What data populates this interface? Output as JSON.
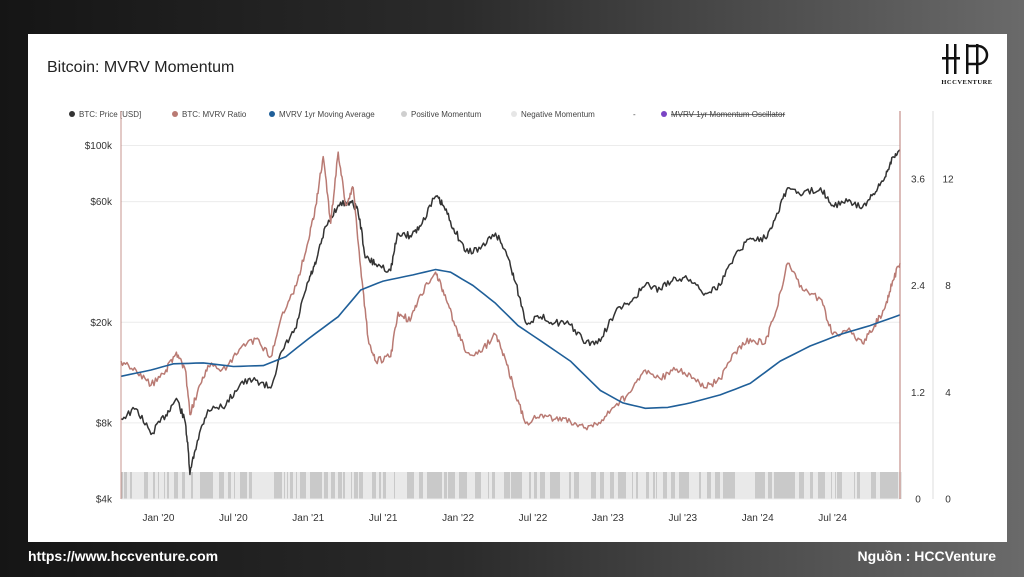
{
  "page": {
    "footer_left": "https://www.hccventure.com",
    "footer_right": "Nguồn : HCCVenture",
    "logo_text": "HCCVENTURE"
  },
  "chart_data": {
    "type": "line",
    "title": "Bitcoin: MVRV Momentum",
    "legend": [
      {
        "name": "BTC: Price [USD]",
        "color": "#333333",
        "struck": false
      },
      {
        "name": "BTC: MVRV Ratio",
        "color": "#b97a73",
        "struck": false
      },
      {
        "name": "MVRV 1yr Moving Average",
        "color": "#1f5f99",
        "struck": false
      },
      {
        "name": "Positive Momentum",
        "color": "#cfcfcf",
        "struck": false
      },
      {
        "name": "Negative Momentum",
        "color": "#e6e6e6",
        "struck": false
      },
      {
        "name": "-",
        "color": "",
        "struck": false
      },
      {
        "name": "MVRV 1yr Momentum Oscillator",
        "color": "#7a44c4",
        "struck": true
      }
    ],
    "x_ticks": [
      "Jan '20",
      "Jul '20",
      "Jan '21",
      "Jul '21",
      "Jan '22",
      "Jul '22",
      "Jan '23",
      "Jul '23",
      "Jan '24",
      "Jul '24"
    ],
    "y_left_ticks": [
      "$100k",
      "$60k",
      "$20k",
      "$8k",
      "$4k"
    ],
    "y_left_values": [
      100000,
      60000,
      20000,
      8000,
      4000
    ],
    "y_left_scale": "log",
    "y_right1_ticks": [
      "3.6",
      "2.4",
      "1.2",
      "0"
    ],
    "y_right1_values": [
      3.6,
      2.4,
      1.2,
      0
    ],
    "y_right2_ticks": [
      "12",
      "8",
      "4",
      "0"
    ],
    "y_right2_values": [
      12,
      8,
      4,
      0
    ],
    "x_range": [
      2019.75,
      2024.95
    ],
    "series": [
      {
        "name": "BTC: Price [USD]",
        "axis": "left",
        "color": "#333333",
        "points": [
          [
            2019.75,
            8300
          ],
          [
            2019.85,
            9100
          ],
          [
            2019.95,
            7200
          ],
          [
            2020.05,
            8600
          ],
          [
            2020.12,
            10000
          ],
          [
            2020.18,
            8000
          ],
          [
            2020.21,
            5000
          ],
          [
            2020.26,
            6800
          ],
          [
            2020.33,
            9000
          ],
          [
            2020.45,
            9400
          ],
          [
            2020.55,
            11500
          ],
          [
            2020.65,
            11800
          ],
          [
            2020.75,
            11000
          ],
          [
            2020.83,
            15500
          ],
          [
            2020.92,
            19000
          ],
          [
            2021.0,
            29000
          ],
          [
            2021.05,
            34000
          ],
          [
            2021.12,
            48000
          ],
          [
            2021.2,
            58000
          ],
          [
            2021.28,
            60000
          ],
          [
            2021.33,
            56000
          ],
          [
            2021.38,
            36000
          ],
          [
            2021.45,
            34000
          ],
          [
            2021.55,
            32000
          ],
          [
            2021.6,
            45000
          ],
          [
            2021.68,
            44000
          ],
          [
            2021.75,
            48000
          ],
          [
            2021.85,
            63000
          ],
          [
            2021.9,
            58000
          ],
          [
            2021.97,
            47000
          ],
          [
            2022.05,
            38000
          ],
          [
            2022.15,
            39000
          ],
          [
            2022.25,
            45000
          ],
          [
            2022.32,
            38000
          ],
          [
            2022.38,
            29000
          ],
          [
            2022.45,
            20000
          ],
          [
            2022.55,
            21000
          ],
          [
            2022.65,
            20000
          ],
          [
            2022.75,
            19500
          ],
          [
            2022.85,
            16500
          ],
          [
            2022.95,
            16800
          ],
          [
            2023.05,
            22000
          ],
          [
            2023.15,
            24000
          ],
          [
            2023.25,
            28000
          ],
          [
            2023.35,
            27000
          ],
          [
            2023.45,
            30000
          ],
          [
            2023.55,
            29500
          ],
          [
            2023.65,
            26000
          ],
          [
            2023.75,
            28000
          ],
          [
            2023.85,
            37000
          ],
          [
            2023.95,
            43000
          ],
          [
            2024.05,
            43000
          ],
          [
            2024.12,
            52000
          ],
          [
            2024.2,
            68000
          ],
          [
            2024.3,
            64000
          ],
          [
            2024.42,
            68000
          ],
          [
            2024.5,
            58000
          ],
          [
            2024.6,
            60000
          ],
          [
            2024.7,
            57000
          ],
          [
            2024.78,
            64000
          ],
          [
            2024.85,
            75000
          ],
          [
            2024.9,
            90000
          ],
          [
            2024.95,
            96000
          ]
        ]
      },
      {
        "name": "BTC: MVRV Ratio",
        "axis": "right1",
        "color": "#b97a73",
        "points": [
          [
            2019.75,
            1.55
          ],
          [
            2019.85,
            1.45
          ],
          [
            2019.95,
            1.28
          ],
          [
            2020.05,
            1.45
          ],
          [
            2020.12,
            1.65
          ],
          [
            2020.18,
            1.45
          ],
          [
            2020.21,
            0.95
          ],
          [
            2020.26,
            1.2
          ],
          [
            2020.33,
            1.5
          ],
          [
            2020.45,
            1.45
          ],
          [
            2020.55,
            1.7
          ],
          [
            2020.65,
            1.8
          ],
          [
            2020.75,
            1.6
          ],
          [
            2020.83,
            2.1
          ],
          [
            2020.92,
            2.4
          ],
          [
            2021.0,
            2.9
          ],
          [
            2021.05,
            3.3
          ],
          [
            2021.1,
            3.85
          ],
          [
            2021.15,
            3.1
          ],
          [
            2021.2,
            3.9
          ],
          [
            2021.25,
            3.3
          ],
          [
            2021.3,
            3.5
          ],
          [
            2021.35,
            2.6
          ],
          [
            2021.4,
            1.8
          ],
          [
            2021.45,
            1.55
          ],
          [
            2021.55,
            1.6
          ],
          [
            2021.6,
            2.1
          ],
          [
            2021.68,
            2.0
          ],
          [
            2021.75,
            2.3
          ],
          [
            2021.85,
            2.55
          ],
          [
            2021.9,
            2.35
          ],
          [
            2021.97,
            2.0
          ],
          [
            2022.05,
            1.65
          ],
          [
            2022.15,
            1.65
          ],
          [
            2022.25,
            1.85
          ],
          [
            2022.32,
            1.55
          ],
          [
            2022.38,
            1.2
          ],
          [
            2022.45,
            0.85
          ],
          [
            2022.55,
            0.95
          ],
          [
            2022.65,
            0.9
          ],
          [
            2022.75,
            0.87
          ],
          [
            2022.85,
            0.8
          ],
          [
            2022.95,
            0.85
          ],
          [
            2023.05,
            1.05
          ],
          [
            2023.15,
            1.2
          ],
          [
            2023.25,
            1.45
          ],
          [
            2023.35,
            1.35
          ],
          [
            2023.45,
            1.45
          ],
          [
            2023.55,
            1.4
          ],
          [
            2023.65,
            1.25
          ],
          [
            2023.75,
            1.35
          ],
          [
            2023.85,
            1.65
          ],
          [
            2023.95,
            1.8
          ],
          [
            2024.05,
            1.75
          ],
          [
            2024.12,
            2.1
          ],
          [
            2024.2,
            2.65
          ],
          [
            2024.3,
            2.35
          ],
          [
            2024.42,
            2.25
          ],
          [
            2024.5,
            1.85
          ],
          [
            2024.6,
            1.9
          ],
          [
            2024.7,
            1.75
          ],
          [
            2024.78,
            1.95
          ],
          [
            2024.85,
            2.15
          ],
          [
            2024.9,
            2.45
          ],
          [
            2024.95,
            2.65
          ]
        ]
      },
      {
        "name": "MVRV 1yr Moving Average",
        "axis": "right1",
        "color": "#1f5f99",
        "points": [
          [
            2019.75,
            1.38
          ],
          [
            2019.95,
            1.45
          ],
          [
            2020.1,
            1.52
          ],
          [
            2020.3,
            1.53
          ],
          [
            2020.5,
            1.49
          ],
          [
            2020.7,
            1.5
          ],
          [
            2020.85,
            1.6
          ],
          [
            2021.0,
            1.8
          ],
          [
            2021.2,
            2.05
          ],
          [
            2021.35,
            2.35
          ],
          [
            2021.5,
            2.45
          ],
          [
            2021.7,
            2.52
          ],
          [
            2021.85,
            2.58
          ],
          [
            2021.95,
            2.55
          ],
          [
            2022.1,
            2.4
          ],
          [
            2022.25,
            2.2
          ],
          [
            2022.4,
            1.95
          ],
          [
            2022.55,
            1.78
          ],
          [
            2022.75,
            1.55
          ],
          [
            2022.95,
            1.22
          ],
          [
            2023.1,
            1.08
          ],
          [
            2023.25,
            1.02
          ],
          [
            2023.4,
            1.03
          ],
          [
            2023.55,
            1.08
          ],
          [
            2023.75,
            1.17
          ],
          [
            2023.95,
            1.3
          ],
          [
            2024.15,
            1.55
          ],
          [
            2024.35,
            1.72
          ],
          [
            2024.55,
            1.85
          ],
          [
            2024.75,
            1.95
          ],
          [
            2024.95,
            2.07
          ]
        ]
      }
    ]
  }
}
